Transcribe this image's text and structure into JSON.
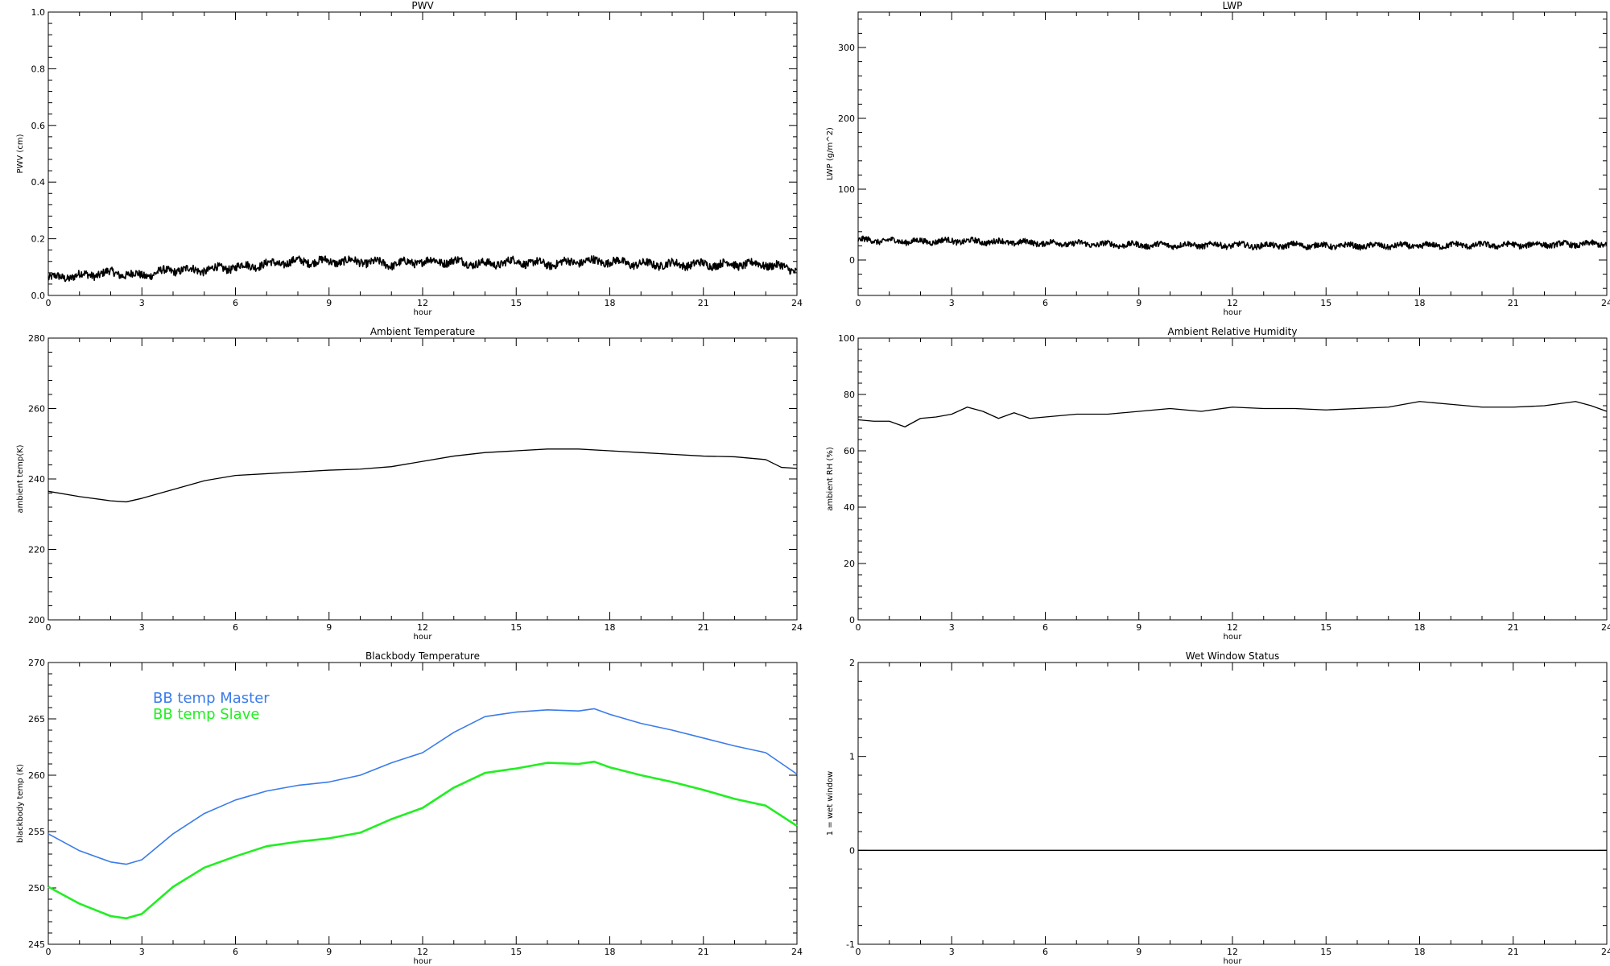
{
  "colors": {
    "background": "#ffffff",
    "axes": "#000000",
    "master": "#3b7bea",
    "slave": "#22ee22"
  },
  "chart_data": [
    {
      "id": "pwv",
      "type": "line",
      "title": "PWV",
      "xlabel": "hour",
      "ylabel": "PWV (cm)",
      "xlim": [
        0,
        24
      ],
      "ylim": [
        0,
        1.0
      ],
      "xticks": [
        0,
        3,
        6,
        9,
        12,
        15,
        18,
        21,
        24
      ],
      "yticks": [
        0,
        0.2,
        0.4,
        0.6,
        0.8,
        1.0
      ],
      "ytick_labels": [
        "0.0",
        "0.2",
        "0.4",
        "0.6",
        "0.8",
        "1.0"
      ],
      "grid": false,
      "series": [
        {
          "name": "",
          "color": "#000000",
          "noisy": true,
          "x": [
            0,
            1,
            2,
            3,
            4,
            5,
            6,
            7,
            8,
            9,
            10,
            11,
            12,
            13,
            14,
            15,
            16,
            17,
            18,
            19,
            20,
            21,
            22,
            23,
            24
          ],
          "y": [
            0.06,
            0.07,
            0.08,
            0.07,
            0.09,
            0.09,
            0.1,
            0.11,
            0.12,
            0.12,
            0.12,
            0.11,
            0.12,
            0.12,
            0.11,
            0.12,
            0.11,
            0.12,
            0.12,
            0.11,
            0.11,
            0.11,
            0.11,
            0.11,
            0.09
          ]
        }
      ]
    },
    {
      "id": "lwp",
      "type": "line",
      "title": "LWP",
      "xlabel": "hour",
      "ylabel": "LWP (g/m^2)",
      "xlim": [
        0,
        24
      ],
      "ylim": [
        -50,
        350
      ],
      "xticks": [
        0,
        3,
        6,
        9,
        12,
        15,
        18,
        21,
        24
      ],
      "yticks": [
        0,
        100,
        200,
        300
      ],
      "ytick_labels": [
        "0",
        "100",
        "200",
        "300"
      ],
      "grid": false,
      "series": [
        {
          "name": "",
          "color": "#000000",
          "noisy": true,
          "x": [
            0,
            1,
            2,
            3,
            4,
            5,
            6,
            7,
            8,
            9,
            10,
            11,
            12,
            13,
            14,
            15,
            16,
            17,
            18,
            19,
            20,
            21,
            22,
            23,
            24
          ],
          "y": [
            28,
            27,
            26,
            27,
            26,
            25,
            24,
            23,
            22,
            21,
            21,
            21,
            21,
            20,
            21,
            20,
            20,
            20,
            20,
            21,
            21,
            21,
            22,
            22,
            23
          ]
        }
      ]
    },
    {
      "id": "ambient-temp",
      "type": "line",
      "title": "Ambient Temperature",
      "xlabel": "hour",
      "ylabel": "ambient temp(K)",
      "xlim": [
        0,
        24
      ],
      "ylim": [
        200,
        280
      ],
      "xticks": [
        0,
        3,
        6,
        9,
        12,
        15,
        18,
        21,
        24
      ],
      "yticks": [
        200,
        220,
        240,
        260,
        280
      ],
      "ytick_labels": [
        "200",
        "220",
        "240",
        "260",
        "280"
      ],
      "grid": false,
      "series": [
        {
          "name": "",
          "color": "#000000",
          "noisy": false,
          "x": [
            0,
            1,
            2,
            2.5,
            3,
            4,
            5,
            6,
            7,
            8,
            9,
            10,
            11,
            12,
            13,
            14,
            15,
            16,
            17,
            18,
            19,
            20,
            21,
            22,
            23,
            23.5,
            24
          ],
          "y": [
            236.5,
            235,
            233.8,
            233.5,
            234.5,
            237,
            239.5,
            241,
            241.5,
            242,
            242.5,
            242.8,
            243.5,
            245,
            246.5,
            247.5,
            248,
            248.5,
            248.5,
            248,
            247.5,
            247,
            246.5,
            246.3,
            245.5,
            243.3,
            243
          ]
        }
      ]
    },
    {
      "id": "ambient-rh",
      "type": "line",
      "title": "Ambient Relative Humidity",
      "xlabel": "hour",
      "ylabel": "ambient RH (%)",
      "xlim": [
        0,
        24
      ],
      "ylim": [
        0,
        100
      ],
      "xticks": [
        0,
        3,
        6,
        9,
        12,
        15,
        18,
        21,
        24
      ],
      "yticks": [
        0,
        20,
        40,
        60,
        80,
        100
      ],
      "ytick_labels": [
        "0",
        "20",
        "40",
        "60",
        "80",
        "100"
      ],
      "grid": false,
      "series": [
        {
          "name": "",
          "color": "#000000",
          "noisy": false,
          "x": [
            0,
            0.5,
            1,
            1.5,
            2,
            2.5,
            3,
            3.5,
            4,
            4.5,
            5,
            5.5,
            6,
            7,
            8,
            9,
            10,
            11,
            12,
            13,
            14,
            15,
            16,
            17,
            18,
            19,
            20,
            21,
            22,
            23,
            23.5,
            24
          ],
          "y": [
            71,
            70.5,
            70.5,
            68.5,
            71.5,
            72,
            73,
            75.5,
            74,
            71.5,
            73.5,
            71.5,
            72,
            73,
            73,
            74,
            75,
            74,
            75.5,
            75,
            75,
            74.5,
            75,
            75.5,
            77.5,
            76.5,
            75.5,
            75.5,
            76,
            77.5,
            76,
            74
          ]
        }
      ]
    },
    {
      "id": "bb-temp",
      "type": "line",
      "title": "Blackbody Temperature",
      "xlabel": "hour",
      "ylabel": "blackbody temp (K)",
      "xlim": [
        0,
        24
      ],
      "ylim": [
        245,
        270
      ],
      "xticks": [
        0,
        3,
        6,
        9,
        12,
        15,
        18,
        21,
        24
      ],
      "yticks": [
        245,
        250,
        255,
        260,
        265,
        270
      ],
      "ytick_labels": [
        "245",
        "250",
        "255",
        "260",
        "265",
        "270"
      ],
      "grid": false,
      "legend": "top-left",
      "series": [
        {
          "name": "BB temp Master",
          "color": "#3b7bea",
          "noisy": false,
          "x": [
            0,
            1,
            2,
            2.5,
            3,
            4,
            5,
            6,
            7,
            8,
            9,
            10,
            11,
            12,
            13,
            14,
            15,
            16,
            17,
            17.5,
            18,
            19,
            20,
            21,
            22,
            23,
            24
          ],
          "y": [
            254.8,
            253.3,
            252.3,
            252.1,
            252.5,
            254.8,
            256.6,
            257.8,
            258.6,
            259.1,
            259.4,
            260,
            261.1,
            262,
            263.8,
            265.2,
            265.6,
            265.8,
            265.7,
            265.9,
            265.4,
            264.6,
            264,
            263.3,
            262.6,
            262,
            260.1
          ]
        },
        {
          "name": "BB temp Slave",
          "color": "#22ee22",
          "noisy": false,
          "x": [
            0,
            1,
            2,
            2.5,
            3,
            4,
            5,
            6,
            7,
            8,
            9,
            10,
            11,
            12,
            13,
            14,
            15,
            16,
            17,
            17.5,
            18,
            19,
            20,
            21,
            22,
            23,
            24
          ],
          "y": [
            250.1,
            248.6,
            247.5,
            247.3,
            247.7,
            250.1,
            251.8,
            252.8,
            253.7,
            254.1,
            254.4,
            254.9,
            256.1,
            257.1,
            258.9,
            260.2,
            260.6,
            261.1,
            261,
            261.2,
            260.7,
            260,
            259.4,
            258.7,
            257.9,
            257.3,
            255.5
          ]
        }
      ]
    },
    {
      "id": "wet-window",
      "type": "line",
      "title": "Wet Window Status",
      "xlabel": "hour",
      "ylabel": "1 = wet window",
      "xlim": [
        0,
        24
      ],
      "ylim": [
        -1,
        2
      ],
      "xticks": [
        0,
        3,
        6,
        9,
        12,
        15,
        18,
        21,
        24
      ],
      "yticks": [
        -1,
        0,
        1,
        2
      ],
      "ytick_labels": [
        "-1",
        "0",
        "1",
        "2"
      ],
      "grid": false,
      "series": [
        {
          "name": "",
          "color": "#000000",
          "noisy": false,
          "x": [
            0,
            24
          ],
          "y": [
            0,
            0
          ]
        }
      ]
    }
  ]
}
